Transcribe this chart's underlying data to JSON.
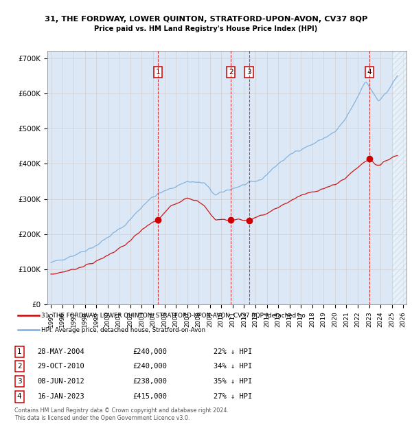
{
  "title1": "31, THE FORDWAY, LOWER QUINTON, STRATFORD-UPON-AVON, CV37 8QP",
  "title2": "Price paid vs. HM Land Registry's House Price Index (HPI)",
  "legend_label_red": "31, THE FORDWAY, LOWER QUINTON, STRATFORD-UPON-AVON, CV37 8QP (detached ho",
  "legend_label_blue": "HPI: Average price, detached house, Stratford-on-Avon",
  "footer1": "Contains HM Land Registry data © Crown copyright and database right 2024.",
  "footer2": "This data is licensed under the Open Government Licence v3.0.",
  "sales": [
    {
      "num": 1,
      "date_dec": 2004.41,
      "price": 240000,
      "label": "28-MAY-2004",
      "pct": "22% ↓ HPI"
    },
    {
      "num": 2,
      "date_dec": 2010.83,
      "price": 240000,
      "label": "29-OCT-2010",
      "pct": "34% ↓ HPI"
    },
    {
      "num": 3,
      "date_dec": 2012.44,
      "price": 238000,
      "label": "08-JUN-2012",
      "pct": "35% ↓ HPI"
    },
    {
      "num": 4,
      "date_dec": 2023.04,
      "price": 415000,
      "label": "16-JAN-2023",
      "pct": "27% ↓ HPI"
    }
  ],
  "ylim": [
    0,
    720000
  ],
  "xlim_start": 1994.7,
  "xlim_end": 2026.3,
  "red_color": "#cc0000",
  "blue_color": "#7aaddc",
  "grid_color": "#d0d0d0",
  "bg_color": "#dce8f5",
  "hatch_color": "#aaaaaa"
}
